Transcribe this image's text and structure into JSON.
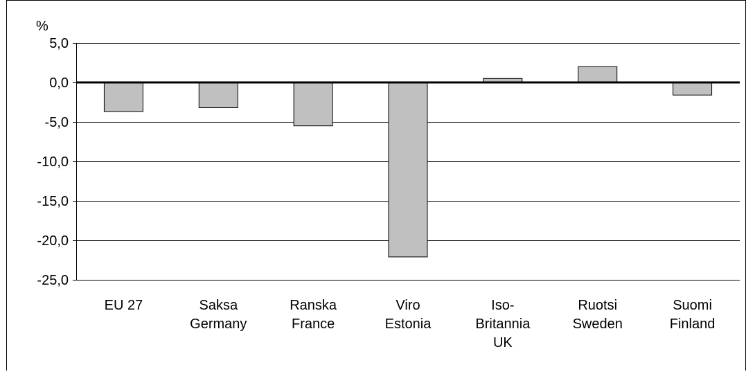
{
  "chart_data": {
    "type": "bar",
    "unit_label": "%",
    "categories": [
      [
        "EU 27"
      ],
      [
        "Saksa",
        "Germany"
      ],
      [
        "Ranska",
        "France"
      ],
      [
        "Viro",
        "Estonia"
      ],
      [
        "Iso-",
        "Britannia",
        "UK"
      ],
      [
        "Ruotsi",
        "Sweden"
      ],
      [
        "Suomi",
        "Finland"
      ]
    ],
    "values": [
      -3.7,
      -3.2,
      -5.5,
      -22.1,
      0.5,
      2.0,
      -1.6
    ],
    "ylim": [
      -25,
      5
    ],
    "yticks": [
      5,
      0,
      -5,
      -10,
      -15,
      -20,
      -25
    ],
    "ytick_labels": [
      "5,0",
      "0,0",
      "-5,0",
      "-10,0",
      "-15,0",
      "-20,0",
      "-25,0"
    ],
    "grid": true,
    "colors": {
      "bar_fill": "#c0c0c0",
      "bar_stroke": "#000000",
      "grid": "#000000",
      "zero_line": "#000000"
    }
  }
}
